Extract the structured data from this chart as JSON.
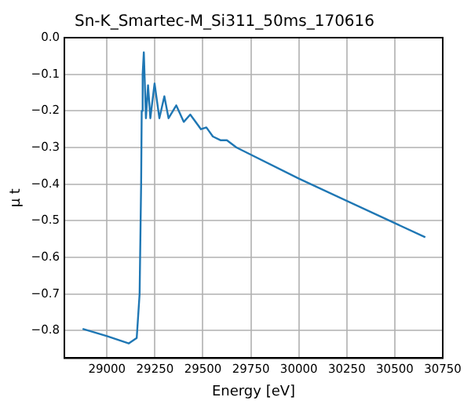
{
  "chart_data": {
    "type": "line",
    "title": "Sn-K_Smartec-M_Si311_50ms_170616",
    "xlabel": "Energy [eV]",
    "ylabel": "μ t",
    "x": [
      28873,
      29000,
      29113,
      29155,
      29170,
      29178,
      29181,
      29186,
      29192,
      29203,
      29214,
      29226,
      29248,
      29273,
      29299,
      29321,
      29361,
      29400,
      29434,
      29490,
      29518,
      29552,
      29591,
      29625,
      29675,
      30000,
      30659
    ],
    "series": [
      {
        "color": "#1f77b4",
        "values": [
          -0.795,
          -0.815,
          -0.835,
          -0.82,
          -0.7,
          -0.4,
          -0.2,
          -0.1,
          -0.04,
          -0.22,
          -0.13,
          -0.22,
          -0.125,
          -0.22,
          -0.16,
          -0.22,
          -0.185,
          -0.23,
          -0.21,
          -0.25,
          -0.245,
          -0.27,
          -0.28,
          -0.28,
          -0.3,
          -0.385,
          -0.545
        ]
      }
    ],
    "xlim": [
      28778,
      30750
    ],
    "xticks": [
      29000,
      29250,
      29500,
      29750,
      30000,
      30250,
      30500,
      30750
    ],
    "ylim": [
      -0.875,
      0
    ],
    "yticks": [
      {
        "value": -0.8,
        "label": "−0.8"
      },
      {
        "value": -0.7,
        "label": "−0.7"
      },
      {
        "value": -0.6,
        "label": "−0.6"
      },
      {
        "value": -0.5,
        "label": "−0.5"
      },
      {
        "value": -0.4,
        "label": "−0.4"
      },
      {
        "value": -0.3,
        "label": "−0.3"
      },
      {
        "value": -0.2,
        "label": "−0.2"
      },
      {
        "value": -0.1,
        "label": "−0.1"
      },
      {
        "value": 0,
        "label": "0.0"
      }
    ],
    "grid": true,
    "legend": false,
    "marker": "none",
    "line_style": "solid"
  }
}
